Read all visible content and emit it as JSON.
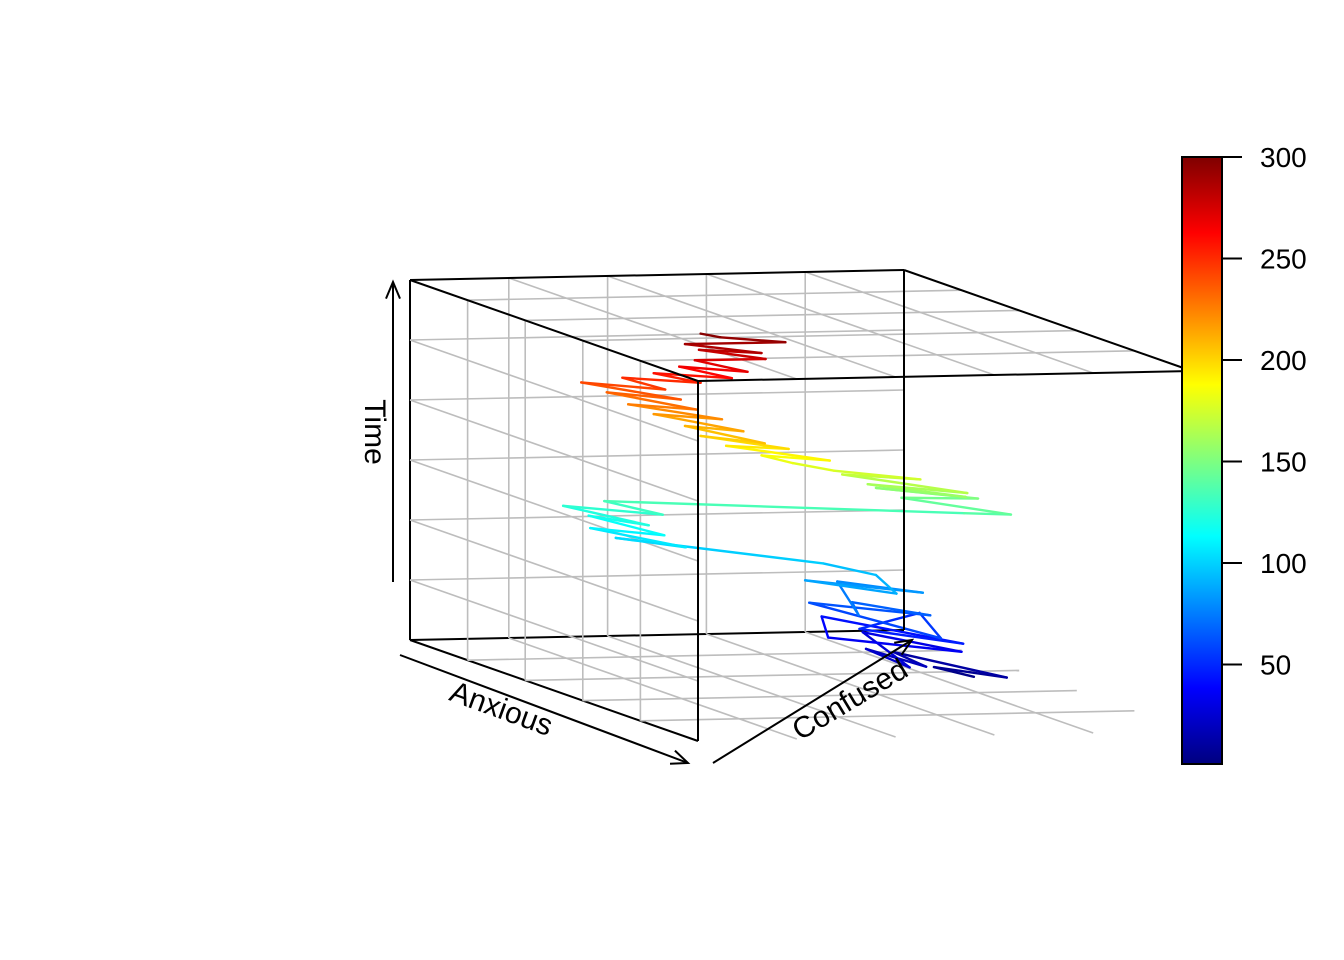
{
  "chart_data": {
    "type": "line",
    "subtype": "3d-trajectory",
    "xlabel": "Anxious",
    "ylabel": "Confused",
    "zlabel": "Time",
    "grid": true,
    "legend": "colorbar-right",
    "colorbar": {
      "palette": "jet",
      "range": [
        1,
        300
      ],
      "ticks": [
        "50",
        "100",
        "150",
        "200",
        "250",
        "300"
      ],
      "colors": [
        "#00007F",
        "#0000FF",
        "#007FFF",
        "#00FFFF",
        "#7FFF7F",
        "#FFFF00",
        "#FF7F00",
        "#FF0000",
        "#7F0000"
      ]
    },
    "series": [
      {
        "points": [
          [
            0.62,
            0.78,
            1
          ],
          [
            0.55,
            0.74,
            4
          ],
          [
            0.7,
            0.8,
            8
          ],
          [
            0.48,
            0.7,
            12
          ],
          [
            0.66,
            0.66,
            16
          ],
          [
            0.52,
            0.62,
            20
          ],
          [
            0.74,
            0.58,
            24
          ],
          [
            0.44,
            0.66,
            28
          ],
          [
            0.68,
            0.72,
            32
          ],
          [
            0.56,
            0.52,
            36
          ],
          [
            0.4,
            0.6,
            40
          ],
          [
            0.72,
            0.7,
            44
          ],
          [
            0.6,
            0.56,
            48
          ],
          [
            0.5,
            0.74,
            52
          ],
          [
            0.78,
            0.62,
            56
          ],
          [
            0.46,
            0.54,
            60
          ],
          [
            0.64,
            0.68,
            64
          ],
          [
            0.54,
            0.58,
            68
          ],
          [
            0.7,
            0.5,
            72
          ],
          [
            0.42,
            0.62,
            76
          ],
          [
            0.58,
            0.7,
            80
          ],
          [
            0.48,
            0.52,
            84
          ],
          [
            0.66,
            0.6,
            88
          ],
          [
            0.52,
            0.64,
            92
          ],
          [
            0.44,
            0.58,
            96
          ],
          [
            0.2,
            0.3,
            100
          ],
          [
            0.34,
            0.36,
            104
          ],
          [
            0.18,
            0.26,
            108
          ],
          [
            0.3,
            0.34,
            112
          ],
          [
            0.14,
            0.28,
            116
          ],
          [
            0.28,
            0.32,
            120
          ],
          [
            0.12,
            0.24,
            124
          ],
          [
            0.26,
            0.36,
            128
          ],
          [
            0.16,
            0.3,
            132
          ],
          [
            0.38,
            0.9,
            136
          ],
          [
            0.44,
            0.96,
            140
          ],
          [
            0.3,
            0.82,
            144
          ],
          [
            0.36,
            0.94,
            148
          ],
          [
            0.28,
            0.78,
            152
          ],
          [
            0.42,
            0.88,
            156
          ],
          [
            0.32,
            0.74,
            160
          ],
          [
            0.46,
            0.86,
            164
          ],
          [
            0.3,
            0.7,
            168
          ],
          [
            0.4,
            0.8,
            172
          ],
          [
            0.34,
            0.66,
            176
          ],
          [
            0.3,
            0.6,
            180
          ],
          [
            0.26,
            0.56,
            184
          ],
          [
            0.36,
            0.64,
            188
          ],
          [
            0.24,
            0.5,
            192
          ],
          [
            0.32,
            0.58,
            196
          ],
          [
            0.22,
            0.46,
            200
          ],
          [
            0.34,
            0.52,
            204
          ],
          [
            0.2,
            0.44,
            208
          ],
          [
            0.3,
            0.5,
            212
          ],
          [
            0.16,
            0.4,
            216
          ],
          [
            0.26,
            0.48,
            220
          ],
          [
            0.14,
            0.36,
            224
          ],
          [
            0.24,
            0.44,
            228
          ],
          [
            0.1,
            0.34,
            232
          ],
          [
            0.22,
            0.42,
            236
          ],
          [
            0.08,
            0.3,
            240
          ],
          [
            0.2,
            0.4,
            244
          ],
          [
            0.12,
            0.36,
            248
          ],
          [
            0.22,
            0.46,
            252
          ],
          [
            0.16,
            0.4,
            256
          ],
          [
            0.26,
            0.5,
            260
          ],
          [
            0.18,
            0.44,
            264
          ],
          [
            0.28,
            0.52,
            268
          ],
          [
            0.2,
            0.46,
            272
          ],
          [
            0.24,
            0.58,
            276
          ],
          [
            0.18,
            0.48,
            280
          ],
          [
            0.26,
            0.56,
            284
          ],
          [
            0.2,
            0.44,
            288
          ],
          [
            0.24,
            0.62,
            292
          ],
          [
            0.22,
            0.5,
            296
          ],
          [
            0.22,
            0.46,
            300
          ]
        ]
      }
    ]
  }
}
